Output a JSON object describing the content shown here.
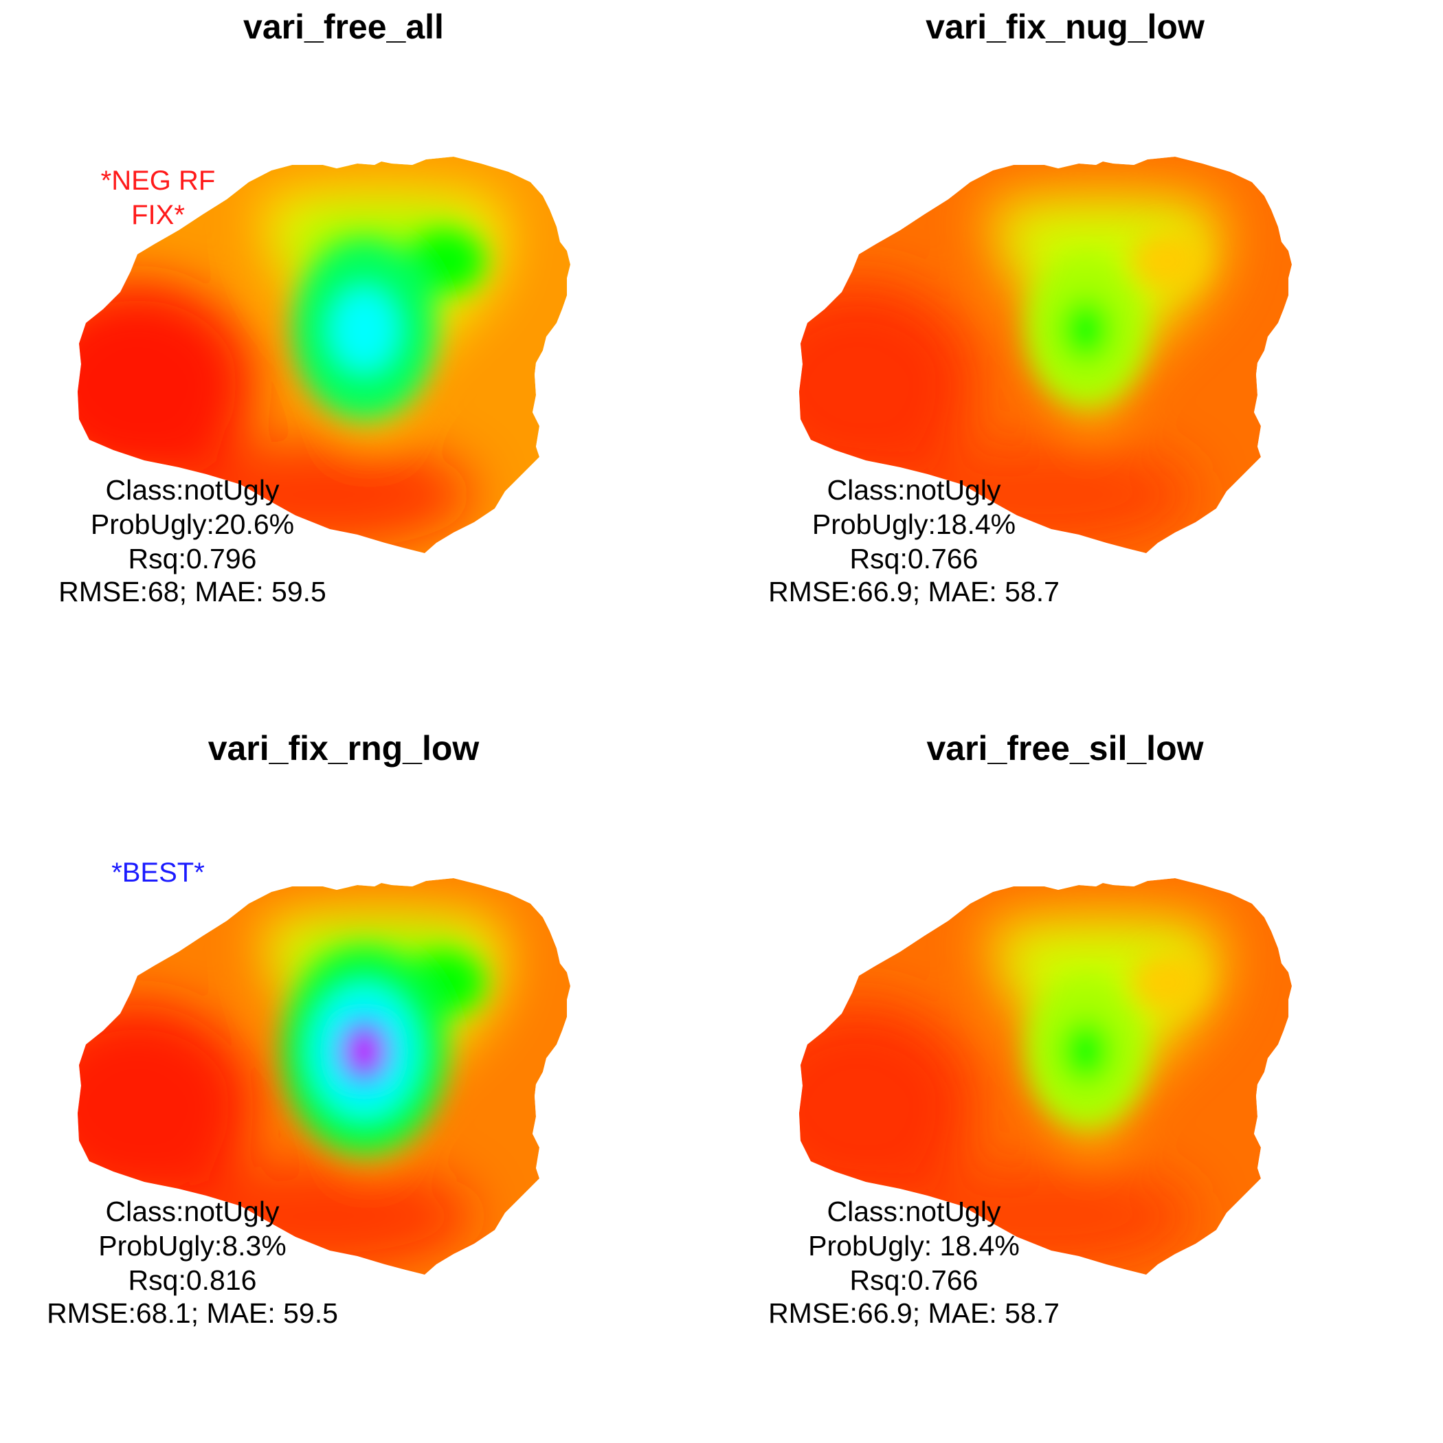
{
  "colors": {
    "flag_red": "#ff1a1a",
    "flag_blue": "#1a1aff",
    "ramp": [
      "#ff1800",
      "#ff5a00",
      "#ff9800",
      "#ffcc00",
      "#ffff00",
      "#b8ff00",
      "#00ff00",
      "#00ffff",
      "#0000ff",
      "#ff00ff"
    ]
  },
  "panels": [
    {
      "title": "vari_free_all",
      "flag": "*NEG RF\nFIX*",
      "flag_color": "red",
      "stats": [
        "Class:notUgly",
        "ProbUgly:20.6%",
        "Rsq:0.796",
        "RMSE:68; MAE: 59.5"
      ],
      "peak_level": "cyan"
    },
    {
      "title": "vari_fix_nug_low",
      "flag": "",
      "stats": [
        "Class:notUgly",
        "ProbUgly:18.4%",
        "Rsq:0.766",
        "RMSE:66.9; MAE: 58.7"
      ],
      "peak_level": "green"
    },
    {
      "title": "vari_fix_rng_low",
      "flag": "*BEST*",
      "flag_color": "blue",
      "stats": [
        "Class:notUgly",
        "ProbUgly:8.3%",
        "Rsq:0.816",
        "RMSE:68.1; MAE: 59.5"
      ],
      "peak_level": "magenta"
    },
    {
      "title": "vari_free_sil_low",
      "flag": "",
      "stats": [
        "Class:notUgly",
        "ProbUgly: 18.4%",
        "Rsq:0.766",
        "RMSE:66.9; MAE: 58.7"
      ],
      "peak_level": "green"
    }
  ]
}
